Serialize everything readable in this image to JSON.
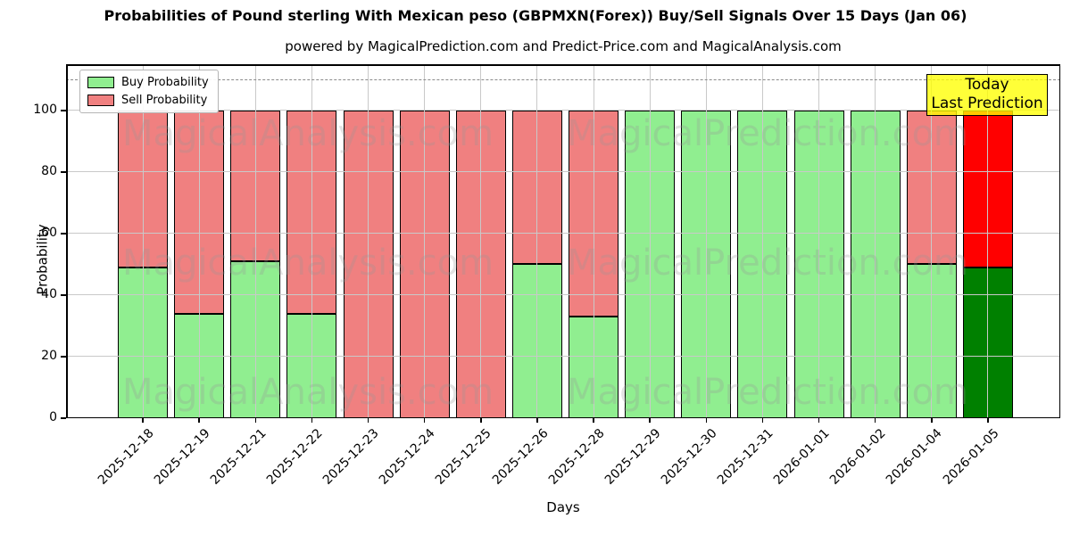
{
  "title": "Probabilities of Pound sterling With Mexican peso (GBPMXN(Forex)) Buy/Sell Signals Over 15 Days (Jan 06)",
  "subtitle": "powered by MagicalPrediction.com and Predict-Price.com and MagicalAnalysis.com",
  "watermarks": [
    "MagicalAnalysis.com",
    "MagicalPrediction.com"
  ],
  "today_box": {
    "line1": "Today",
    "line2": "Last Prediction"
  },
  "legend": [
    {
      "label": "Buy Probability",
      "color": "#90ee90"
    },
    {
      "label": "Sell Probability",
      "color": "#f08080"
    }
  ],
  "chart_data": {
    "type": "bar",
    "stacked": true,
    "title": "Probabilities of Pound sterling With Mexican peso (GBPMXN(Forex)) Buy/Sell Signals Over 15 Days (Jan 06)",
    "xlabel": "Days",
    "ylabel": "Probability",
    "categories": [
      "2025-12-18",
      "2025-12-19",
      "2025-12-21",
      "2025-12-22",
      "2025-12-23",
      "2025-12-24",
      "2025-12-25",
      "2025-12-26",
      "2025-12-28",
      "2025-12-29",
      "2025-12-30",
      "2025-12-31",
      "2026-01-01",
      "2026-01-02",
      "2026-01-04",
      "2026-01-05"
    ],
    "series": [
      {
        "name": "Buy Probability",
        "color": "#90ee90",
        "today_color": "#008000",
        "values": [
          49,
          34,
          51,
          34,
          0,
          0,
          0,
          50,
          33,
          100,
          100,
          100,
          100,
          100,
          50,
          49
        ]
      },
      {
        "name": "Sell Probability",
        "color": "#f08080",
        "today_color": "#ff0000",
        "values": [
          51,
          66,
          49,
          66,
          100,
          100,
          100,
          50,
          67,
          0,
          0,
          0,
          0,
          0,
          50,
          51
        ]
      }
    ],
    "ylim": [
      0,
      115
    ],
    "yticks": [
      0,
      20,
      40,
      60,
      80,
      100
    ],
    "dashed_line_y": 110,
    "grid": true,
    "legend_position": "upper left",
    "today_annotation_index": 15
  }
}
